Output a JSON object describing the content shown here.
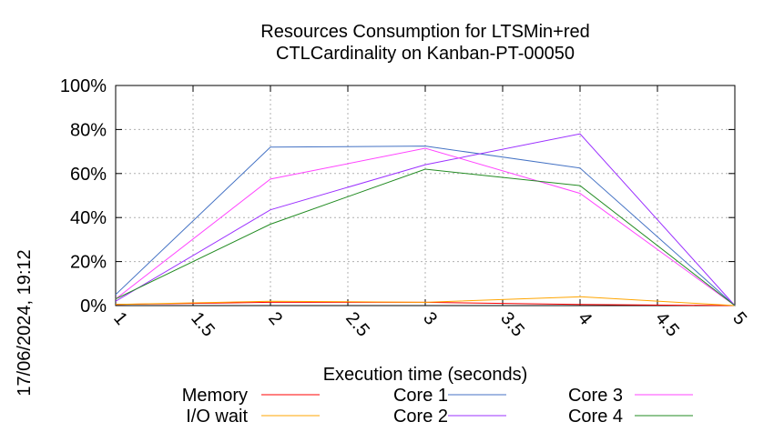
{
  "chart_data": {
    "type": "line",
    "title_line1": "Resources Consumption for LTSMin+red",
    "title_line2": "CTLCardinality on Kanban-PT-00050",
    "xlabel": "Execution time (seconds)",
    "ylabel": "",
    "side_label": "17/06/2024, 19:12",
    "xlim": [
      1,
      5
    ],
    "ylim": [
      0,
      100
    ],
    "x_ticks": [
      "1",
      "1.5",
      "2",
      "2.5",
      "3",
      "3.5",
      "4",
      "4.5",
      "5"
    ],
    "y_ticks": [
      "0%",
      "20%",
      "40%",
      "60%",
      "80%",
      "100%"
    ],
    "grid": true,
    "legend_position": "bottom",
    "x": [
      1,
      2,
      3,
      4,
      5
    ],
    "series": [
      {
        "name": "Memory",
        "color": "#ff0000",
        "values": [
          0.5,
          1.5,
          1.5,
          0.5,
          0
        ]
      },
      {
        "name": "I/O wait",
        "color": "#ffa500",
        "values": [
          0.5,
          2,
          1.5,
          4,
          0
        ]
      },
      {
        "name": "Core 1",
        "color": "#4472c4",
        "values": [
          5,
          72,
          72.5,
          62.5,
          0
        ]
      },
      {
        "name": "Core 2",
        "color": "#9b30ff",
        "values": [
          2,
          43.5,
          64,
          78,
          0
        ]
      },
      {
        "name": "Core 3",
        "color": "#ff44ff",
        "values": [
          3,
          57.5,
          71.5,
          51,
          0
        ]
      },
      {
        "name": "Core 4",
        "color": "#228b22",
        "values": [
          3,
          37,
          62,
          54.5,
          0
        ]
      }
    ]
  }
}
